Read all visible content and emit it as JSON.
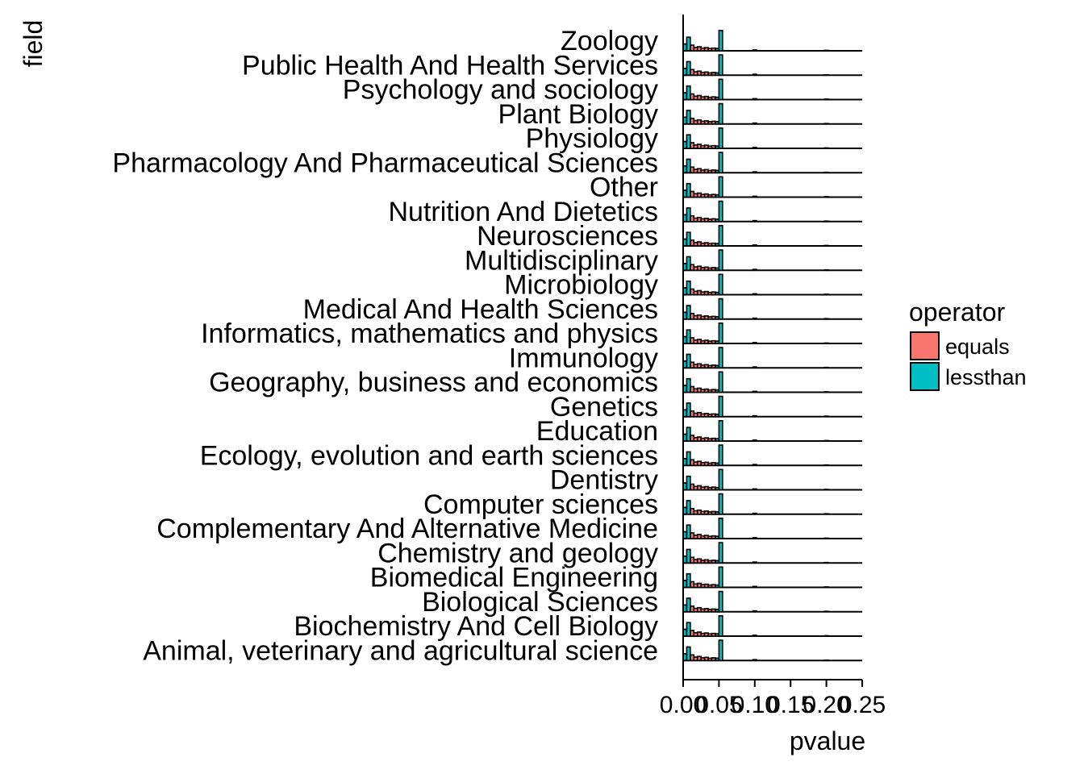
{
  "chart_data": {
    "type": "histogram-ridge",
    "xlabel": "pvalue",
    "ylabel": "field",
    "xlim": [
      0,
      0.25
    ],
    "x_ticks": [
      "0.00",
      "0.05",
      "0.10",
      "0.15",
      "0.20",
      "0.25"
    ],
    "x_tick_values": [
      0,
      0.05,
      0.1,
      0.15,
      0.2,
      0.25
    ],
    "bin_width": 0.005,
    "legend": {
      "title": "operator",
      "placement": "right",
      "entries": [
        {
          "name": "equals",
          "color": "#F8766D"
        },
        {
          "name": "lessthan",
          "color": "#00BFC4"
        }
      ]
    },
    "categories": [
      "Zoology",
      "Public Health And Health Services",
      "Psychology and sociology",
      "Plant Biology",
      "Physiology",
      "Pharmacology And Pharmaceutical Sciences",
      "Other",
      "Nutrition And Dietetics",
      "Neurosciences",
      "Multidisciplinary",
      "Microbiology",
      "Medical And Health Sciences",
      "Informatics, mathematics and physics",
      "Immunology",
      "Geography, business and economics",
      "Genetics",
      "Education",
      "Ecology, evolution and earth sciences",
      "Dentistry",
      "Computer sciences",
      "Complementary And Alternative Medicine",
      "Chemistry and geology",
      "Biomedical Engineering",
      "Biological Sciences",
      "Biochemistry And Cell Biology",
      "Animal, veterinary and agricultural science"
    ],
    "series": [
      {
        "name": "equals",
        "bins_x": [
          0.0025,
          0.0075,
          0.0125,
          0.0175,
          0.0225,
          0.0275,
          0.0325,
          0.0375,
          0.0425,
          0.0475,
          0.1,
          0.2
        ],
        "values": [
          0.3,
          0.2,
          0.25,
          0.15,
          0.18,
          0.12,
          0.14,
          0.1,
          0.12,
          0.1,
          0.04,
          0.02
        ]
      },
      {
        "name": "lessthan",
        "bins_x": [
          0.0025,
          0.0075,
          0.0475,
          0.0525
        ],
        "values": [
          0.3,
          0.6,
          0.1,
          0.9
        ]
      }
    ]
  }
}
